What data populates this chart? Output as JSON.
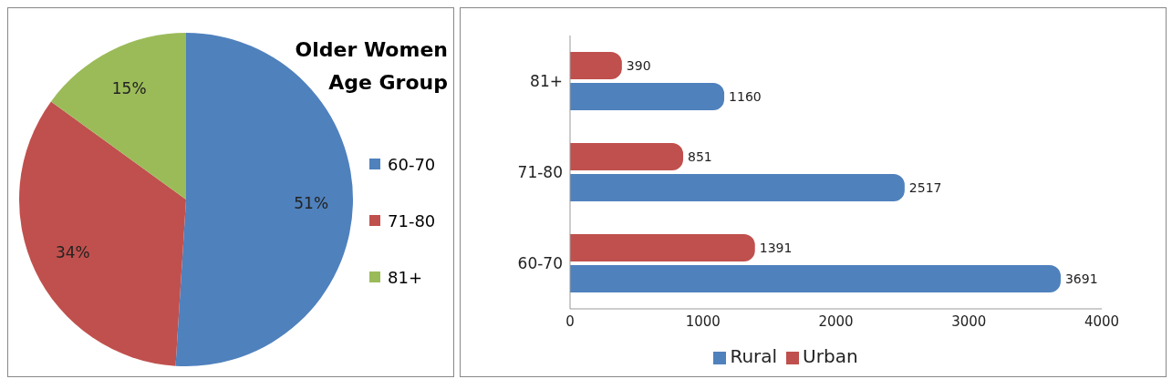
{
  "chart_data": [
    {
      "type": "pie",
      "title": "Older Women Age Group",
      "categories": [
        "60-70",
        "71-80",
        "81+"
      ],
      "values": [
        51,
        34,
        15
      ],
      "colors": [
        "#4f81bd",
        "#c0504d",
        "#9bbb59"
      ],
      "value_labels": [
        "51%",
        "34%",
        "15%"
      ],
      "legend": "right"
    },
    {
      "type": "bar",
      "orientation": "horizontal",
      "categories": [
        "81+",
        "71-80",
        "60-70"
      ],
      "series": [
        {
          "name": "Urban",
          "color": "#c0504d",
          "values": [
            390,
            851,
            1391
          ]
        },
        {
          "name": "Rural",
          "color": "#4f81bd",
          "values": [
            1160,
            2517,
            3691
          ]
        }
      ],
      "xlim": [
        0,
        4000
      ],
      "xticks": [
        0,
        1000,
        2000,
        3000,
        4000
      ],
      "grid": false,
      "data_labels": true,
      "legend": "bottom"
    }
  ]
}
